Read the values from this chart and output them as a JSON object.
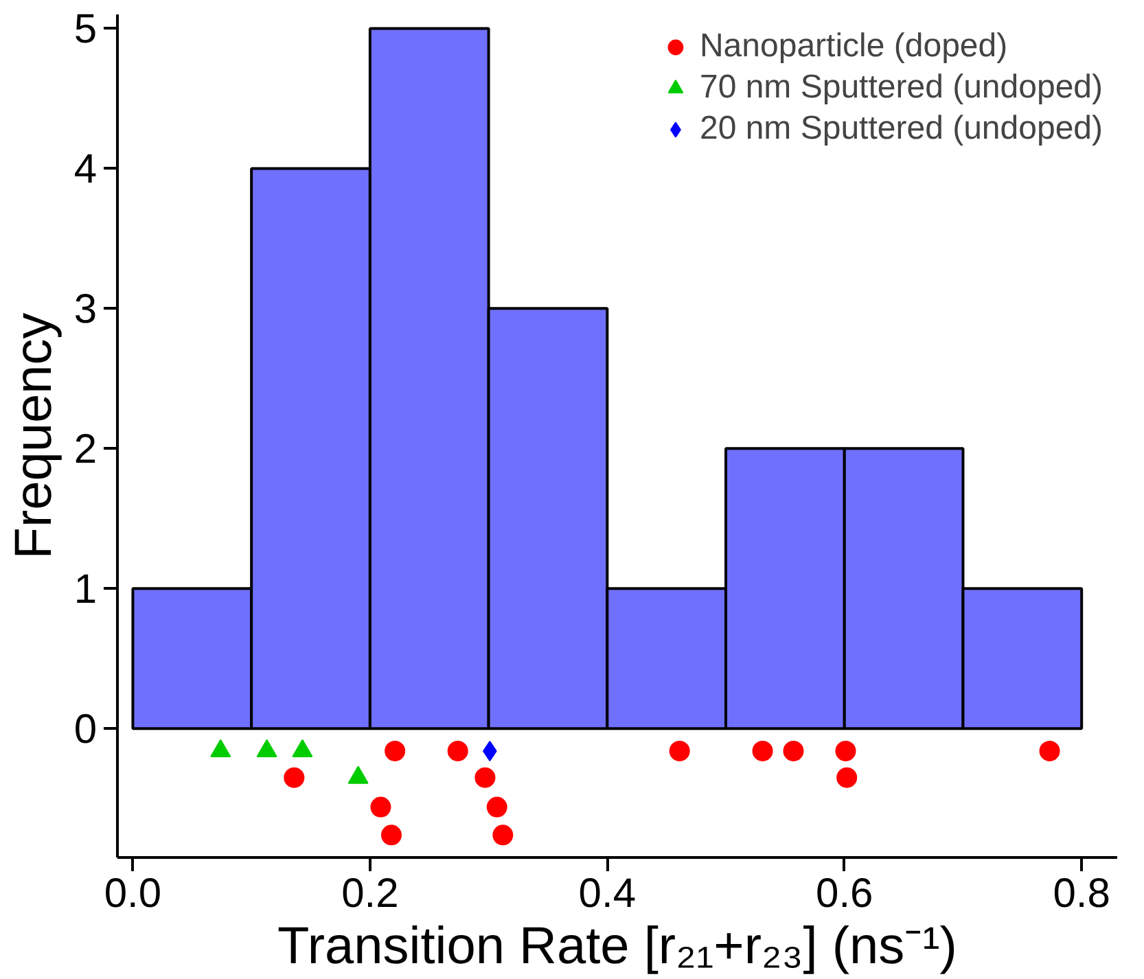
{
  "chart_data": {
    "type": "histogram",
    "xlabel": "Transition Rate [r₂₁+r₂₃] (ns⁻¹)",
    "ylabel": "Frequency",
    "bins": [
      0.0,
      0.1,
      0.2,
      0.3,
      0.4,
      0.5,
      0.6,
      0.7,
      0.8
    ],
    "values": [
      1,
      4,
      5,
      3,
      1,
      2,
      2,
      1
    ],
    "color": "#7070ff",
    "xlim": [
      -0.013,
      0.83
    ],
    "ylim": [
      -0.92,
      5.1
    ],
    "xticks": [
      {
        "value": 0,
        "label": "0.0"
      },
      0.2,
      0.4,
      0.6,
      0.8
    ],
    "yticks": [
      0,
      1,
      2,
      3,
      4,
      5
    ],
    "grid": false,
    "legend": "top right",
    "series": [
      {
        "name": "Nanoparticle (doped)",
        "type": "scatter",
        "marker": "circle",
        "color": "#ff0000",
        "x": [
          0.221,
          0.136,
          0.209,
          0.218,
          0.274,
          0.297,
          0.307,
          0.312,
          0.461,
          0.531,
          0.557,
          0.601,
          0.602,
          0.773
        ],
        "values": [
          -0.16,
          -0.35,
          -0.56,
          -0.76,
          -0.16,
          -0.35,
          -0.56,
          -0.76,
          -0.16,
          -0.16,
          -0.16,
          -0.16,
          -0.35,
          -0.16
        ]
      },
      {
        "name": "70 nm Sputtered (undoped)",
        "type": "scatter",
        "marker": "triangle",
        "color": "#00cc00",
        "x": [
          0.074,
          0.113,
          0.143,
          0.19
        ],
        "values": [
          -0.16,
          -0.16,
          -0.16,
          -0.35
        ]
      },
      {
        "name": "20 nm Sputtered (undoped)",
        "type": "scatter",
        "marker": "diamond",
        "color": "#0000ff",
        "x": [
          0.301
        ],
        "values": [
          -0.16
        ]
      }
    ]
  }
}
